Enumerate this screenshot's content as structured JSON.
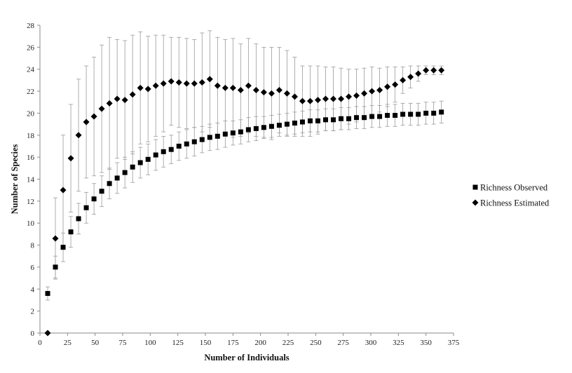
{
  "chart_data": {
    "type": "scatter",
    "xlabel": "Number of Individuals",
    "ylabel": "Number of Species",
    "xlim": [
      0,
      375
    ],
    "ylim": [
      0,
      28
    ],
    "xticks": [
      0,
      25,
      50,
      75,
      100,
      125,
      150,
      175,
      200,
      225,
      250,
      275,
      300,
      325,
      350,
      375
    ],
    "yticks": [
      0,
      2,
      4,
      6,
      8,
      10,
      12,
      14,
      16,
      18,
      20,
      22,
      24,
      26,
      28
    ],
    "legend_position": "right",
    "error_bars": true,
    "series": [
      {
        "name": "Richness Observed",
        "marker": "square",
        "x": [
          7,
          14,
          21,
          28,
          35,
          42,
          49,
          56,
          63,
          70,
          77,
          84,
          91,
          98,
          105,
          112,
          119,
          126,
          133,
          140,
          147,
          154,
          161,
          168,
          175,
          182,
          189,
          196,
          203,
          210,
          217,
          224,
          231,
          238,
          245,
          252,
          259,
          266,
          273,
          280,
          287,
          294,
          301,
          308,
          315,
          322,
          329,
          336,
          343,
          350,
          357,
          364
        ],
        "y": [
          3.6,
          6.0,
          7.8,
          9.2,
          10.4,
          11.4,
          12.2,
          12.9,
          13.6,
          14.1,
          14.6,
          15.1,
          15.5,
          15.8,
          16.2,
          16.5,
          16.7,
          17.0,
          17.2,
          17.4,
          17.6,
          17.8,
          17.9,
          18.1,
          18.2,
          18.3,
          18.5,
          18.6,
          18.7,
          18.8,
          18.9,
          19.0,
          19.1,
          19.2,
          19.3,
          19.3,
          19.4,
          19.4,
          19.5,
          19.5,
          19.6,
          19.6,
          19.7,
          19.7,
          19.8,
          19.8,
          19.9,
          19.9,
          19.9,
          20.0,
          20.0,
          20.1
        ],
        "error": [
          0.6,
          1.0,
          1.3,
          1.4,
          1.4,
          1.4,
          1.4,
          1.4,
          1.4,
          1.4,
          1.4,
          1.4,
          1.4,
          1.4,
          1.4,
          1.4,
          1.3,
          1.3,
          1.3,
          1.3,
          1.2,
          1.2,
          1.2,
          1.2,
          1.1,
          1.1,
          1.1,
          1.1,
          1.0,
          1.0,
          1.0,
          1.0,
          1.0,
          1.0,
          1.0,
          1.0,
          1.0,
          1.0,
          1.0,
          1.0,
          1.0,
          1.0,
          1.0,
          1.0,
          1.0,
          1.0,
          1.0,
          1.0,
          1.0,
          1.0,
          1.0,
          1.0
        ]
      },
      {
        "name": "Richness Estimated",
        "marker": "diamond",
        "x": [
          7,
          14,
          21,
          28,
          35,
          42,
          49,
          56,
          63,
          70,
          77,
          84,
          91,
          98,
          105,
          112,
          119,
          126,
          133,
          140,
          147,
          154,
          161,
          168,
          175,
          182,
          189,
          196,
          203,
          210,
          217,
          224,
          231,
          238,
          245,
          252,
          259,
          266,
          273,
          280,
          287,
          294,
          301,
          308,
          315,
          322,
          329,
          336,
          343,
          350,
          357,
          364
        ],
        "y": [
          0.0,
          8.6,
          13.0,
          15.9,
          18.0,
          19.2,
          19.7,
          20.4,
          20.9,
          21.3,
          21.2,
          21.7,
          22.3,
          22.2,
          22.5,
          22.7,
          22.9,
          22.8,
          22.7,
          22.7,
          22.8,
          23.1,
          22.5,
          22.3,
          22.3,
          22.1,
          22.5,
          22.1,
          21.9,
          21.8,
          22.1,
          21.8,
          21.5,
          21.1,
          21.1,
          21.2,
          21.3,
          21.3,
          21.3,
          21.5,
          21.6,
          21.8,
          22.0,
          22.1,
          22.4,
          22.6,
          23.0,
          23.3,
          23.6,
          23.9,
          23.9,
          23.9
        ],
        "error": [
          0.0,
          3.7,
          5.0,
          4.9,
          5.1,
          5.1,
          5.4,
          5.8,
          6.0,
          5.4,
          5.4,
          5.4,
          5.1,
          4.8,
          4.6,
          4.4,
          4.0,
          4.1,
          4.1,
          4.0,
          4.5,
          4.4,
          4.4,
          4.4,
          4.5,
          4.2,
          4.3,
          4.2,
          4.1,
          4.2,
          3.9,
          3.9,
          3.6,
          3.2,
          3.2,
          3.1,
          2.9,
          2.9,
          2.8,
          2.5,
          2.4,
          2.3,
          2.2,
          2.0,
          1.8,
          1.6,
          1.2,
          1.0,
          0.7,
          0.4,
          0.4,
          0.4
        ]
      }
    ]
  }
}
